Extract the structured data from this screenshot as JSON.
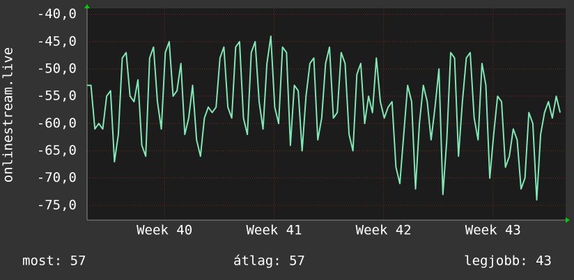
{
  "chart_data": {
    "type": "line",
    "y_label": "onlinestream.live",
    "x": [
      0,
      0.25,
      0.5,
      0.75,
      1,
      1.25,
      1.5,
      1.75,
      2,
      2.25,
      2.5,
      2.75,
      3,
      3.25,
      3.5,
      3.75,
      4,
      4.25,
      4.5,
      4.75,
      5,
      5.25,
      5.5,
      5.75,
      6,
      6.25,
      6.5,
      6.75,
      7,
      7.25,
      7.5,
      7.75,
      8,
      8.25,
      8.5,
      8.75,
      9,
      9.25,
      9.5,
      9.75,
      10,
      10.25,
      10.5,
      10.75,
      11,
      11.25,
      11.5,
      11.75,
      12,
      12.25,
      12.5,
      12.75,
      13,
      13.25,
      13.5,
      13.75,
      14,
      14.25,
      14.5,
      14.75,
      15,
      15.25,
      15.5,
      15.75,
      16,
      16.25,
      16.5,
      16.75,
      17,
      17.25,
      17.5,
      17.75,
      18,
      18.25,
      18.5,
      18.75,
      19,
      19.25,
      19.5,
      19.75,
      20,
      20.25,
      20.5,
      20.75,
      21,
      21.25,
      21.5,
      21.75,
      22,
      22.25,
      22.5,
      22.75,
      23,
      23.25,
      23.5,
      23.75,
      24,
      24.25,
      24.5,
      24.75,
      25,
      25.25,
      25.5,
      25.75,
      26,
      26.25,
      26.5,
      26.75,
      27,
      27.25,
      27.5,
      27.75,
      28,
      28.25,
      28.5,
      28.75,
      29,
      29.25,
      29.5,
      29.75,
      30,
      30.25
    ],
    "series": [
      {
        "color": "#7fe8b4",
        "values": [
          -53,
          -53,
          -61,
          -60,
          -61,
          -55,
          -54,
          -67,
          -62,
          -48,
          -47,
          -55,
          -56,
          -52,
          -64,
          -66,
          -48,
          -46,
          -56,
          -61,
          -47,
          -45,
          -55,
          -54,
          -49,
          -62,
          -59,
          -53,
          -63,
          -66,
          -59,
          -57,
          -58,
          -57,
          -48,
          -46,
          -57,
          -59,
          -46,
          -45,
          -59,
          -62,
          -47,
          -45,
          -56,
          -61,
          -49,
          -44,
          -57,
          -60,
          -46,
          -47,
          -64,
          -53,
          -54,
          -65,
          -55,
          -49,
          -48,
          -63,
          -59,
          -49,
          -46,
          -59,
          -58,
          -47,
          -49,
          -62,
          -65,
          -51,
          -49,
          -60,
          -55,
          -58,
          -48,
          -56,
          -59,
          -57,
          -56,
          -68,
          -71,
          -62,
          -53,
          -56,
          -72,
          -60,
          -53,
          -56,
          -63,
          -57,
          -50,
          -73,
          -63,
          -47,
          -48,
          -66,
          -56,
          -48,
          -47,
          -59,
          -63,
          -49,
          -53,
          -70,
          -62,
          -55,
          -56,
          -68,
          -66,
          -61,
          -63,
          -72,
          -70,
          -58,
          -60,
          -74,
          -62,
          -58,
          -56,
          -59,
          -55,
          -58
        ]
      }
    ],
    "xlim": [
      0,
      30.6
    ],
    "xticks": [
      {
        "value": 4.95,
        "label": "Week 40"
      },
      {
        "value": 11.96,
        "label": "Week 41"
      },
      {
        "value": 18.96,
        "label": "Week 42"
      },
      {
        "value": 25.96,
        "label": "Week 43"
      }
    ],
    "ylim": [
      -77.7,
      -38.9
    ],
    "yticks": [
      {
        "value": -40,
        "label": "-40,0"
      },
      {
        "value": -45,
        "label": "-45,0"
      },
      {
        "value": -50,
        "label": "-50,0"
      },
      {
        "value": -55,
        "label": "-55,0"
      },
      {
        "value": -60,
        "label": "-60,0"
      },
      {
        "value": -65,
        "label": "-65,0"
      },
      {
        "value": -70,
        "label": "-70,0"
      },
      {
        "value": -75,
        "label": "-75,0"
      }
    ],
    "grid": true,
    "annotations": [
      "most: 57",
      "átlag: 57",
      "legjobb: 43"
    ]
  }
}
